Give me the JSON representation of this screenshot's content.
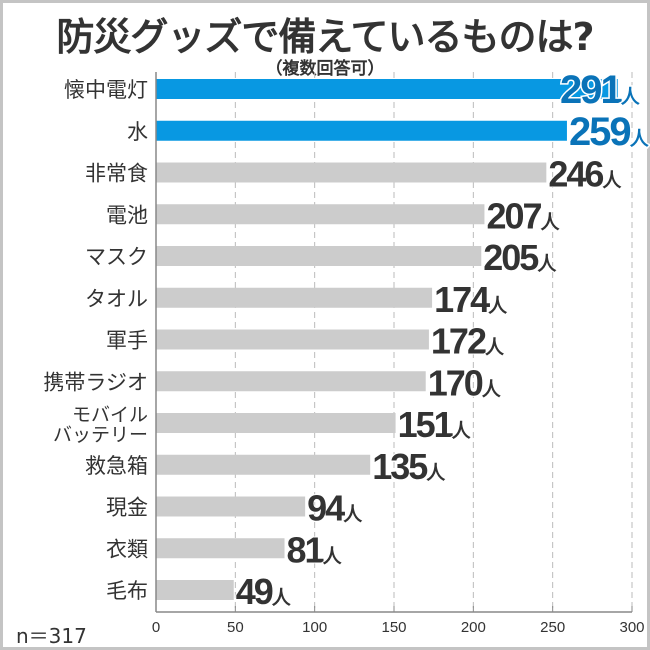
{
  "chart_data": {
    "type": "bar",
    "orientation": "horizontal",
    "title": "防災グッズで備えているものは?",
    "subtitle": "（複数回答可）",
    "categories": [
      "懐中電灯",
      "水",
      "非常食",
      "電池",
      "マスク",
      "タオル",
      "軍手",
      "携帯ラジオ",
      "モバイル\nバッテリー",
      "救急箱",
      "現金",
      "衣類",
      "毛布"
    ],
    "values": [
      291,
      259,
      246,
      207,
      205,
      174,
      172,
      170,
      151,
      135,
      94,
      81,
      49
    ],
    "highlighted": [
      true,
      true,
      false,
      false,
      false,
      false,
      false,
      false,
      false,
      false,
      false,
      false,
      false
    ],
    "unit": "人",
    "xlim": [
      0,
      300
    ],
    "xticks": [
      0,
      50,
      100,
      150,
      200,
      250,
      300
    ],
    "grid": true,
    "note": "n＝317",
    "colors": {
      "highlight": "#0898e2",
      "highlight_label": "#0a73b8",
      "default": "#cccccc",
      "label": "#333333"
    }
  }
}
